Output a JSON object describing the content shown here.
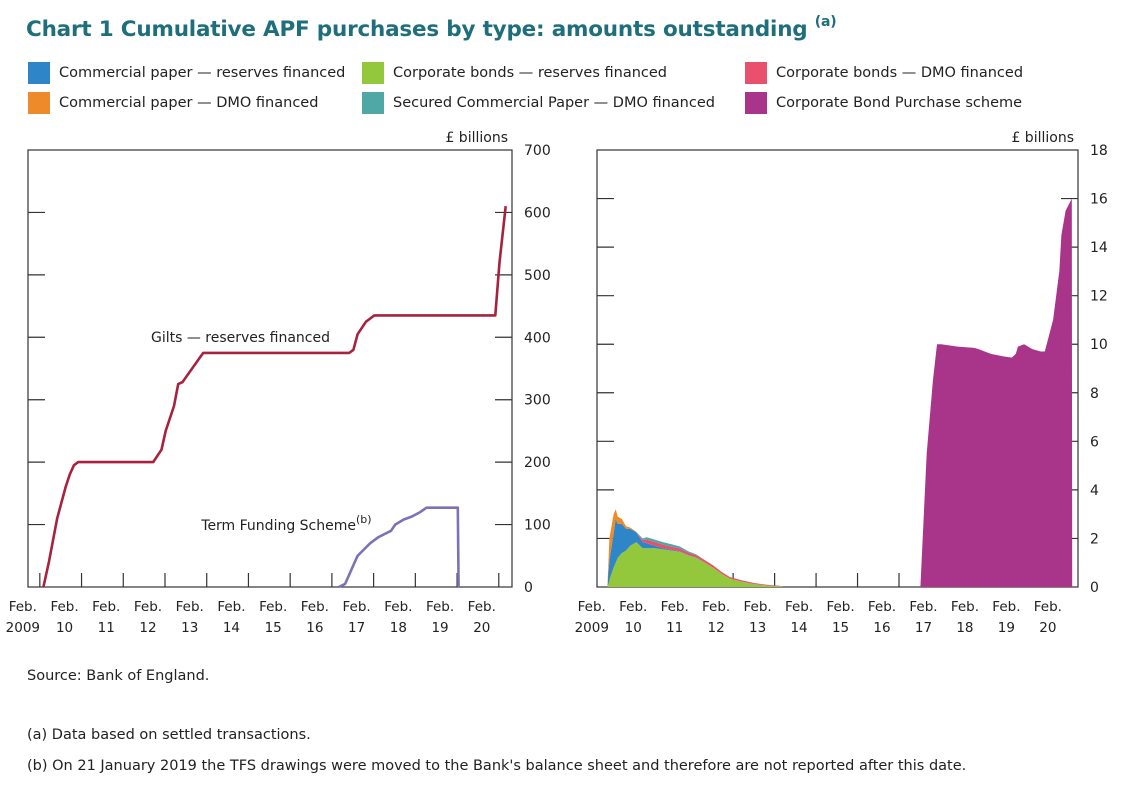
{
  "title": "Chart 1 Cumulative APF purchases by type: amounts outstanding",
  "title_note": "(a)",
  "legend": [
    {
      "label": "Commercial paper — reserves financed",
      "color": "#2e86c8"
    },
    {
      "label": "Corporate bonds — reserves financed",
      "color": "#94c83c"
    },
    {
      "label": "Corporate bonds — DMO financed",
      "color": "#e8506e"
    },
    {
      "label": "Commercial paper — DMO financed",
      "color": "#ef8a2a"
    },
    {
      "label": "Secured Commercial Paper — DMO financed",
      "color": "#4fa8a6"
    },
    {
      "label": "Corporate Bond Purchase scheme",
      "color": "#a8358a"
    }
  ],
  "footnotes": {
    "source": "Source: Bank of England.",
    "a": "(a) Data based on settled transactions.",
    "b": "(b) On 21 January 2019 the TFS drawings were moved to the Bank's balance sheet and therefore are not reported after this date."
  },
  "chart_data": [
    {
      "type": "line",
      "ylabel": "£ billions",
      "ylim": [
        0,
        700
      ],
      "yticks": [
        0,
        100,
        200,
        300,
        400,
        500,
        600,
        700
      ],
      "xlim": [
        2008.8,
        2020.4
      ],
      "xticks": [
        {
          "month": "Feb.",
          "year": "2009"
        },
        {
          "month": "Feb.",
          "year": "10"
        },
        {
          "month": "Feb.",
          "year": "11"
        },
        {
          "month": "Feb.",
          "year": "12"
        },
        {
          "month": "Feb.",
          "year": "13"
        },
        {
          "month": "Feb.",
          "year": "14"
        },
        {
          "month": "Feb.",
          "year": "15"
        },
        {
          "month": "Feb.",
          "year": "16"
        },
        {
          "month": "Feb.",
          "year": "17"
        },
        {
          "month": "Feb.",
          "year": "18"
        },
        {
          "month": "Feb.",
          "year": "19"
        },
        {
          "month": "Feb.",
          "year": "20"
        }
      ],
      "series": [
        {
          "name": "Gilts — reserves financed",
          "color": "#a6223e",
          "x": [
            2009.17,
            2009.3,
            2009.5,
            2009.7,
            2009.8,
            2009.9,
            2010.0,
            2010.5,
            2011.0,
            2011.2,
            2011.8,
            2012.0,
            2012.1,
            2012.3,
            2012.4,
            2012.5,
            2013.0,
            2014.0,
            2015.0,
            2016.0,
            2016.5,
            2016.6,
            2016.7,
            2016.9,
            2017.0,
            2017.1,
            2018.0,
            2019.0,
            2019.9,
            2020.0,
            2020.1,
            2020.25
          ],
          "y": [
            0,
            40,
            110,
            160,
            180,
            195,
            200,
            200,
            200,
            200,
            200,
            220,
            250,
            290,
            325,
            328,
            375,
            375,
            375,
            375,
            375,
            380,
            405,
            425,
            430,
            435,
            435,
            435,
            435,
            435,
            520,
            610
          ]
        },
        {
          "name": "Term Funding Scheme",
          "note": "(b)",
          "color": "#7b72b8",
          "x": [
            2016.25,
            2016.4,
            2016.5,
            2016.6,
            2016.7,
            2016.85,
            2017.0,
            2017.2,
            2017.5,
            2017.6,
            2017.8,
            2018.0,
            2018.2,
            2018.35,
            2018.45,
            2018.55,
            2019.1,
            2019.12
          ],
          "y": [
            0,
            5,
            20,
            35,
            50,
            60,
            70,
            80,
            90,
            100,
            108,
            113,
            120,
            127,
            127,
            127,
            127,
            0
          ]
        }
      ]
    },
    {
      "type": "area",
      "ylabel": "£ billions",
      "ylim": [
        0,
        18
      ],
      "yticks": [
        0,
        2,
        4,
        6,
        8,
        10,
        12,
        14,
        16,
        18
      ],
      "xlim": [
        2008.8,
        2020.4
      ],
      "xticks": [
        {
          "month": "Feb.",
          "year": "2009"
        },
        {
          "month": "Feb.",
          "year": "10"
        },
        {
          "month": "Feb.",
          "year": "11"
        },
        {
          "month": "Feb.",
          "year": "12"
        },
        {
          "month": "Feb.",
          "year": "13"
        },
        {
          "month": "Feb.",
          "year": "14"
        },
        {
          "month": "Feb.",
          "year": "15"
        },
        {
          "month": "Feb.",
          "year": "16"
        },
        {
          "month": "Feb.",
          "year": "17"
        },
        {
          "month": "Feb.",
          "year": "18"
        },
        {
          "month": "Feb.",
          "year": "19"
        },
        {
          "month": "Feb.",
          "year": "20"
        }
      ],
      "x": [
        2009.05,
        2009.1,
        2009.2,
        2009.25,
        2009.3,
        2009.4,
        2009.5,
        2009.6,
        2009.75,
        2009.9,
        2010.0,
        2010.2,
        2010.4,
        2010.6,
        2010.8,
        2011.0,
        2011.2,
        2011.4,
        2011.6,
        2011.8,
        2012.0,
        2012.3,
        2012.6,
        2012.9,
        2013.2,
        2013.3
      ],
      "series": [
        {
          "name": "Corporate bonds — reserves financed",
          "color": "#94c83c",
          "values": [
            0,
            0.3,
            0.8,
            1.0,
            1.2,
            1.4,
            1.5,
            1.7,
            1.85,
            1.6,
            1.6,
            1.6,
            1.55,
            1.5,
            1.45,
            1.3,
            1.2,
            1.0,
            0.8,
            0.55,
            0.35,
            0.22,
            0.12,
            0.06,
            0.03,
            0
          ]
        },
        {
          "name": "Commercial paper — reserves financed",
          "color": "#2e86c8",
          "values": [
            0,
            0.8,
            1.4,
            1.8,
            1.4,
            1.2,
            0.9,
            0.7,
            0.4,
            0.25,
            0.2,
            0.1,
            0.05,
            0.03,
            0.02,
            0.02,
            0.01,
            0.01,
            0,
            0,
            0,
            0,
            0,
            0,
            0,
            0
          ]
        },
        {
          "name": "Corporate bonds — DMO financed",
          "color": "#e8506e",
          "values": [
            0,
            0,
            0,
            0,
            0,
            0,
            0,
            0,
            0,
            0.1,
            0.15,
            0.15,
            0.14,
            0.13,
            0.12,
            0.1,
            0.1,
            0.1,
            0.09,
            0.08,
            0.06,
            0.05,
            0.04,
            0.03,
            0.02,
            0
          ]
        },
        {
          "name": "Commercial paper — DMO financed",
          "color": "#ef8a2a",
          "values": [
            0,
            0.9,
            0.8,
            0.4,
            0.3,
            0.2,
            0.1,
            0.05,
            0.02,
            0,
            0,
            0,
            0,
            0,
            0,
            0,
            0,
            0,
            0,
            0,
            0,
            0,
            0,
            0,
            0,
            0
          ]
        },
        {
          "name": "Secured Commercial Paper — DMO financed",
          "color": "#4fa8a6",
          "values": [
            0,
            0,
            0,
            0,
            0,
            0,
            0,
            0,
            0,
            0.05,
            0.1,
            0.1,
            0.1,
            0.1,
            0.08,
            0.05,
            0.03,
            0,
            0,
            0,
            0,
            0,
            0,
            0,
            0,
            0
          ]
        }
      ],
      "scheme_series": {
        "name": "Corporate Bond Purchase scheme",
        "color": "#a8358a",
        "x": [
          2016.55,
          2016.6,
          2016.75,
          2016.9,
          2017.0,
          2017.1,
          2017.5,
          2017.9,
          2018.0,
          2018.3,
          2018.6,
          2018.8,
          2018.9,
          2018.95,
          2019.1,
          2019.3,
          2019.5,
          2019.6,
          2019.8,
          2019.95,
          2020.0,
          2020.1,
          2020.25,
          2020.26
        ],
        "values": [
          0,
          0,
          5.5,
          8.5,
          10.0,
          10.0,
          9.9,
          9.85,
          9.8,
          9.6,
          9.5,
          9.45,
          9.6,
          9.9,
          10.0,
          9.8,
          9.7,
          9.7,
          11,
          13,
          14.5,
          15.5,
          16.0,
          0
        ]
      }
    }
  ]
}
